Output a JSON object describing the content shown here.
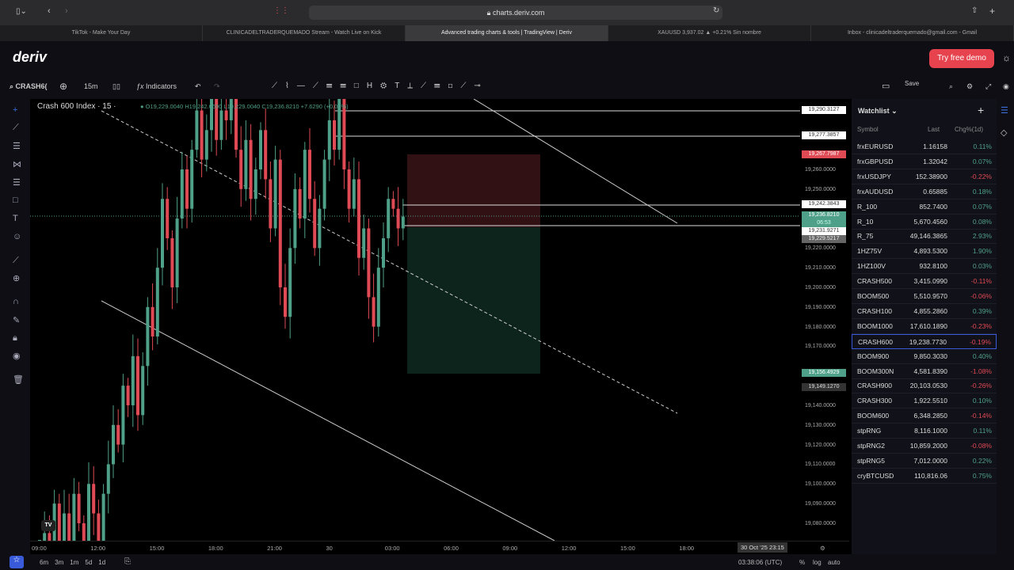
{
  "browser": {
    "url": "charts.deriv.com",
    "tabs": [
      "TikTok - Make Your Day",
      "CLINICADELTRADERQUEMADO Stream - Watch Live on Kick",
      "Advanced trading charts & tools | TradingView | Deriv",
      "XAUUSD 3,937.02 ▲ +0.21% Sin nombre",
      "Inbox - clinicadeltraderquemado@gmail.com - Gmail"
    ],
    "active_tab": 2
  },
  "header": {
    "logo": "deriv",
    "try_demo": "Try free demo"
  },
  "toolbar": {
    "symbol": "CRASH6(",
    "interval": "15m",
    "indicators": "Indicators",
    "save": "Save"
  },
  "legend": {
    "title": "Crash 600 Index · 15 ·",
    "ohlc": "O19,229.0040 H19,242.0690 L19,229.0040 C19,236.8210 +7.6290 (+0.04%)"
  },
  "price_axis": {
    "labels": [
      "19,260.0000",
      "19,250.0000",
      "19,220.0000",
      "19,210.0000",
      "19,200.0000",
      "19,190.0000",
      "19,180.0000",
      "19,170.0000",
      "19,140.0000",
      "19,130.0000",
      "19,120.0000",
      "19,110.0000",
      "19,100.0000",
      "19,090.0000",
      "19,080.0000"
    ],
    "tags": [
      {
        "text": "19,290.3127",
        "style": "white"
      },
      {
        "text": "19,277.3857",
        "style": "white"
      },
      {
        "text": "19,267.7987",
        "style": "red"
      },
      {
        "text": "19,242.3843",
        "style": "white"
      },
      {
        "text": "19,236.8210",
        "style": "green"
      },
      {
        "text": "19,231.9271",
        "style": "white"
      },
      {
        "text": "19,229.5217",
        "style": "gray"
      },
      {
        "text": "19,156.4929",
        "style": "green"
      },
      {
        "text": "19,149.1270",
        "style": "dark"
      }
    ],
    "countdown": "06:53"
  },
  "time_axis": {
    "labels": [
      "09:00",
      "12:00",
      "15:00",
      "18:00",
      "21:00",
      "30",
      "03:00",
      "06:00",
      "09:00",
      "12:00",
      "15:00",
      "18:00"
    ],
    "crosshair": "30 Oct '25  23:15"
  },
  "bottom": {
    "ranges": [
      "6m",
      "3m",
      "1m",
      "5d",
      "1d"
    ],
    "clock": "03:38:06 (UTC)",
    "pct": "%",
    "log": "log",
    "auto": "auto"
  },
  "candles": {
    "closes": [
      19060,
      19075,
      19050,
      19090,
      19070,
      19085,
      19060,
      19095,
      19080,
      19065,
      19100,
      19085,
      19070,
      19095,
      19110,
      19130,
      19120,
      19150,
      19140,
      19165,
      19135,
      19160,
      19190,
      19175,
      19210,
      19245,
      19225,
      19200,
      19235,
      19260,
      19240,
      19270,
      19290,
      19265,
      19280,
      19300,
      19275,
      19290,
      19285,
      19300,
      19270,
      19250,
      19275,
      19245,
      19260,
      19280,
      19255,
      19230,
      19265,
      19200,
      19185,
      19220,
      19250,
      19235,
      19270,
      19245,
      19220,
      19240,
      19265,
      19285,
      19270,
      19300,
      19260,
      19240,
      19255,
      19215,
      19230,
      19195,
      19180,
      19210,
      19225,
      19245,
      19240,
      19230,
      19236
    ],
    "up_color": "#4fa088",
    "down_color": "#e04a55"
  },
  "watchlist": {
    "title": "Watchlist",
    "headers": [
      "Symbol",
      "Last",
      "Chg%(1d)"
    ],
    "selected": 13,
    "rows": [
      {
        "s": "frxEURUSD",
        "p": "1.16158",
        "c": "0.11%",
        "up": true
      },
      {
        "s": "frxGBPUSD",
        "p": "1.32042",
        "c": "0.07%",
        "up": true
      },
      {
        "s": "frxUSDJPY",
        "p": "152.38900",
        "c": "-0.22%",
        "up": false
      },
      {
        "s": "frxAUDUSD",
        "p": "0.65885",
        "c": "0.18%",
        "up": true
      },
      {
        "s": "R_100",
        "p": "852.7400",
        "c": "0.07%",
        "up": true
      },
      {
        "s": "R_10",
        "p": "5,670.4560",
        "c": "0.08%",
        "up": true
      },
      {
        "s": "R_75",
        "p": "49,146.3865",
        "c": "2.93%",
        "up": true
      },
      {
        "s": "1HZ75V",
        "p": "4,893.5300",
        "c": "1.90%",
        "up": true
      },
      {
        "s": "1HZ100V",
        "p": "932.8100",
        "c": "0.03%",
        "up": true
      },
      {
        "s": "CRASH500",
        "p": "3,415.0990",
        "c": "-0.11%",
        "up": false
      },
      {
        "s": "BOOM500",
        "p": "5,510.9570",
        "c": "-0.06%",
        "up": false
      },
      {
        "s": "CRASH100",
        "p": "4,855.2860",
        "c": "0.39%",
        "up": true
      },
      {
        "s": "BOOM1000",
        "p": "17,610.1890",
        "c": "-0.23%",
        "up": false
      },
      {
        "s": "CRASH600",
        "p": "19,238.7730",
        "c": "-0.19%",
        "up": false
      },
      {
        "s": "BOOM900",
        "p": "9,850.3030",
        "c": "0.40%",
        "up": true
      },
      {
        "s": "BOOM300N",
        "p": "4,581.8390",
        "c": "-1.08%",
        "up": false
      },
      {
        "s": "CRASH900",
        "p": "20,103.0530",
        "c": "-0.26%",
        "up": false
      },
      {
        "s": "CRASH300",
        "p": "1,922.5510",
        "c": "0.10%",
        "up": true
      },
      {
        "s": "BOOM600",
        "p": "6,348.2850",
        "c": "-0.14%",
        "up": false
      },
      {
        "s": "stpRNG",
        "p": "8,116.1000",
        "c": "0.11%",
        "up": true
      },
      {
        "s": "stpRNG2",
        "p": "10,859.2000",
        "c": "-0.08%",
        "up": false
      },
      {
        "s": "stpRNG5",
        "p": "7,012.0000",
        "c": "0.22%",
        "up": true
      },
      {
        "s": "cryBTCUSD",
        "p": "110,816.06",
        "c": "0.75%",
        "up": true
      }
    ]
  },
  "colors": {
    "up": "#4fa088",
    "down": "#e04a55",
    "brand": "#e6434e",
    "select": "#3a5bd9"
  }
}
